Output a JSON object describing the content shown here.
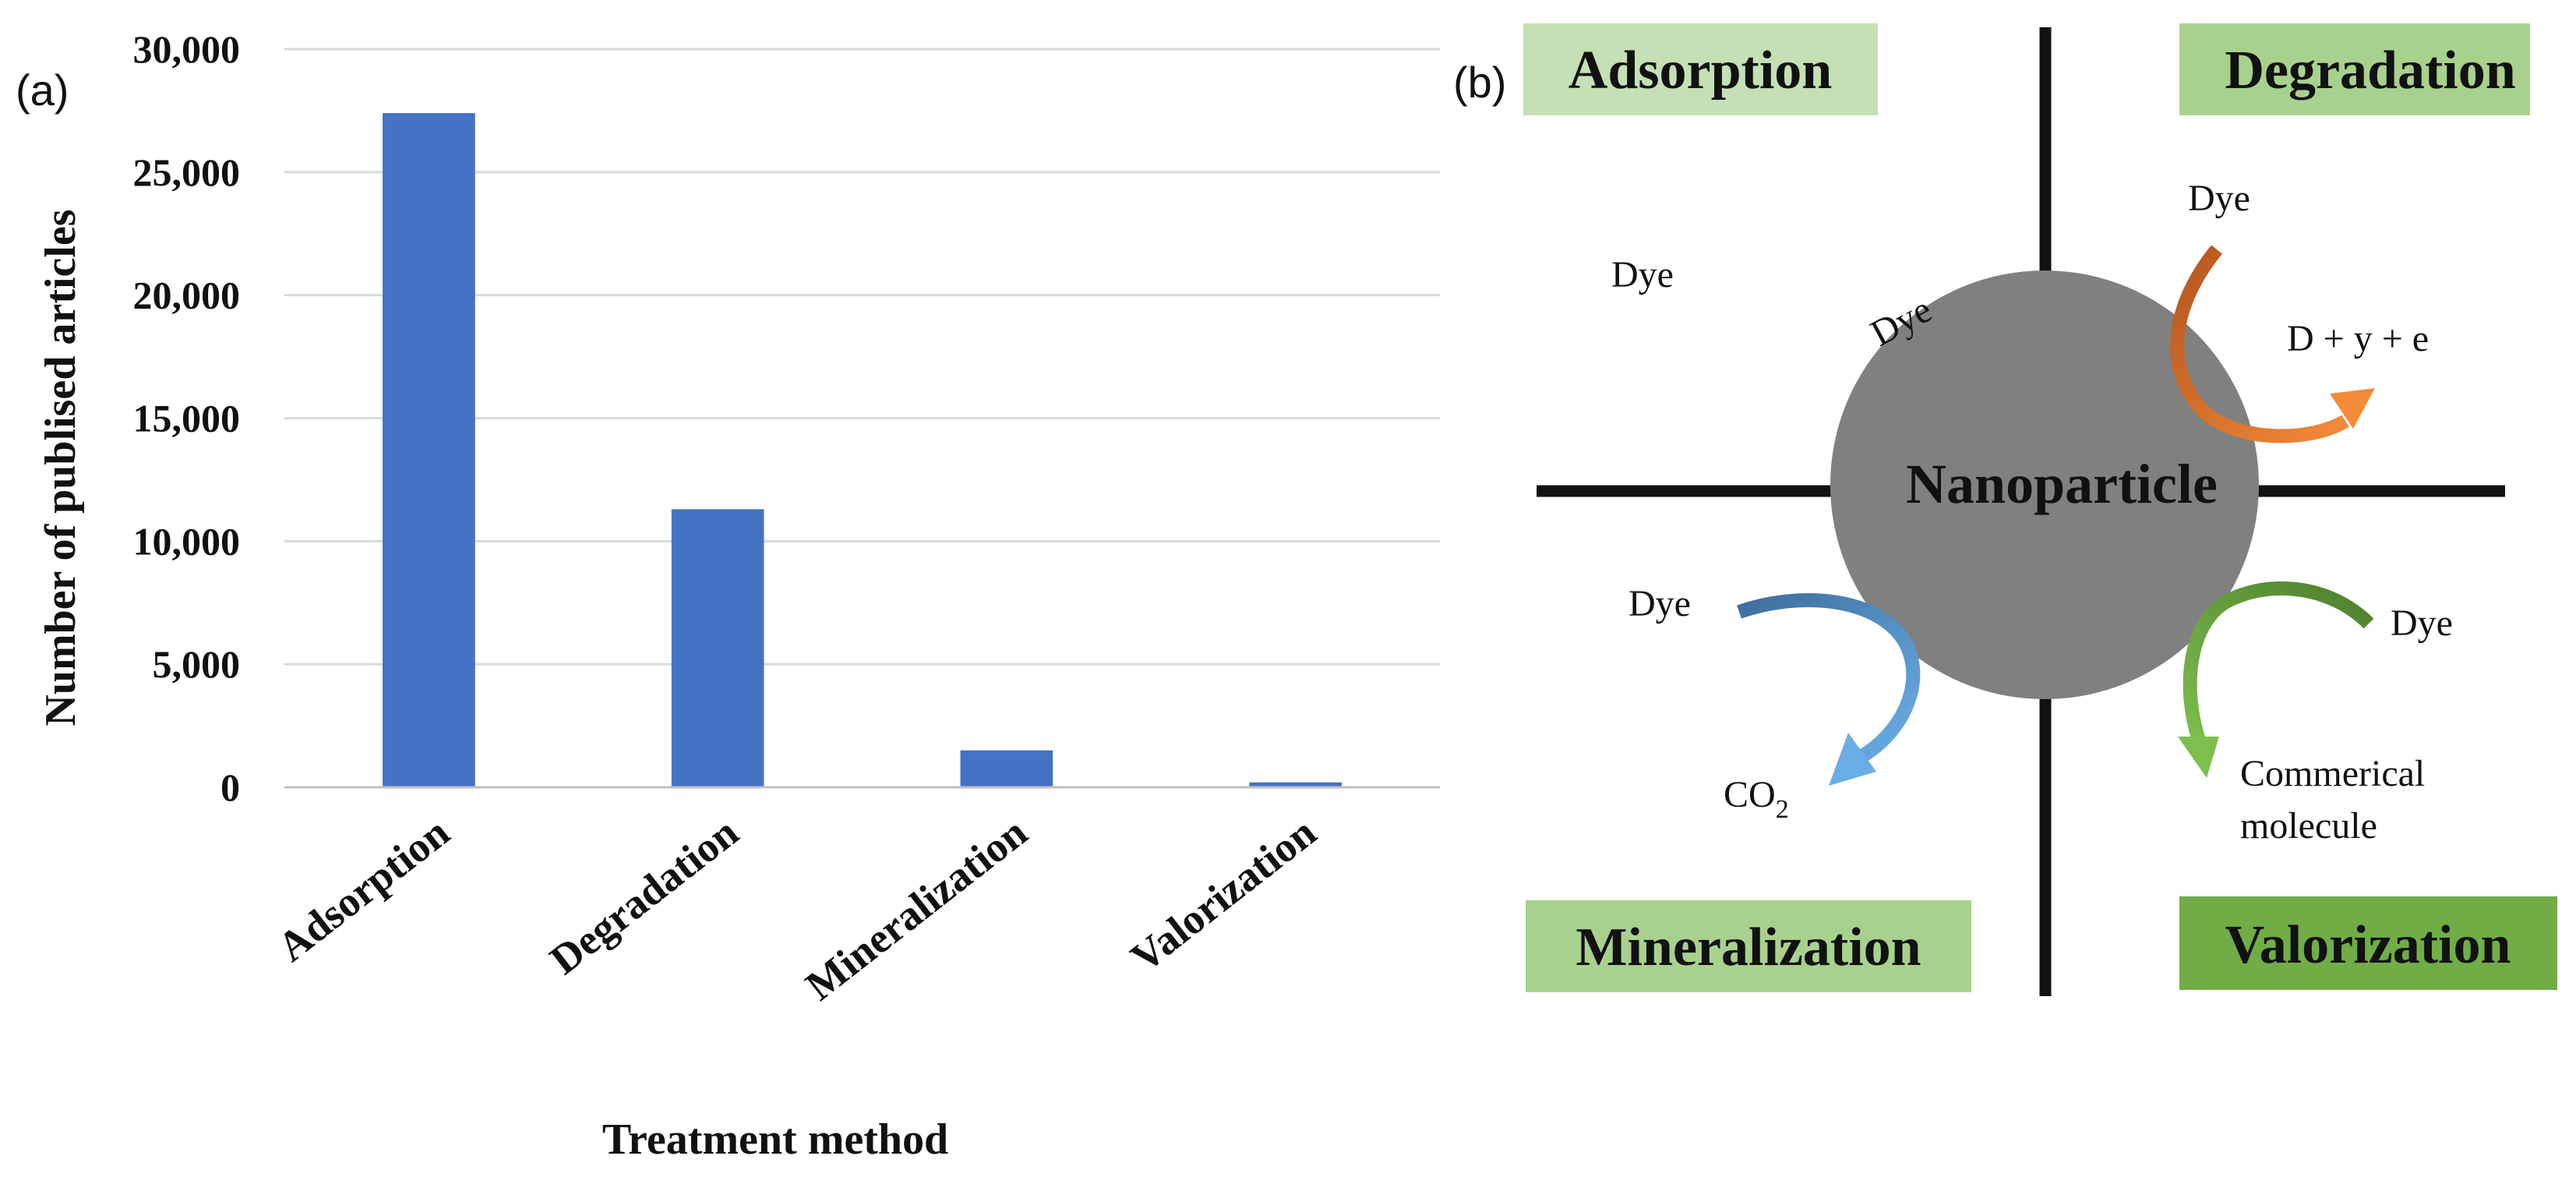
{
  "panel_a": {
    "label": "(a)"
  },
  "panel_b": {
    "label": "(b)"
  },
  "chart_data": {
    "type": "bar",
    "title": "",
    "xlabel": "Treatment method",
    "ylabel": "Number of publised articles",
    "categories": [
      "Adsorption",
      "Degradation",
      "Mineralization",
      "Valorization"
    ],
    "values": [
      27400,
      11300,
      1500,
      200
    ],
    "ylim": [
      0,
      30000
    ],
    "yticks": [
      0,
      5000,
      10000,
      15000,
      20000,
      25000,
      30000
    ],
    "ytick_labels": [
      "0",
      "5,000",
      "10,000",
      "15,000",
      "20,000",
      "25,000",
      "30,000"
    ],
    "grid": true,
    "bar_color": "#4472C4"
  },
  "diagram": {
    "quadrants": {
      "adsorption": "Adsorption",
      "degradation": "Degradation",
      "mineralization": "Mineralization",
      "valorization": "Valorization"
    },
    "nanoparticle": "Nanoparticle",
    "dye_free": "Dye",
    "dye_adsorbed": "Dye",
    "dye_degradation": "Dye",
    "degradation_products": "D + y + e",
    "dye_mineralization": "Dye",
    "co2_main": "CO",
    "co2_sub": "2",
    "dye_valorization": "Dye",
    "product_line1": "Commerical",
    "product_line2": "molecule",
    "colors": {
      "quad_light": "#C5E0B4",
      "quad_mid": "#A9D18E",
      "quad_dark": "#70AD47",
      "nanoparticle": "#808080",
      "degradation_arrow": "#ED7D31",
      "mineralization_arrow": "#5B9BD5",
      "valorization_arrow": "#70AD47"
    }
  }
}
